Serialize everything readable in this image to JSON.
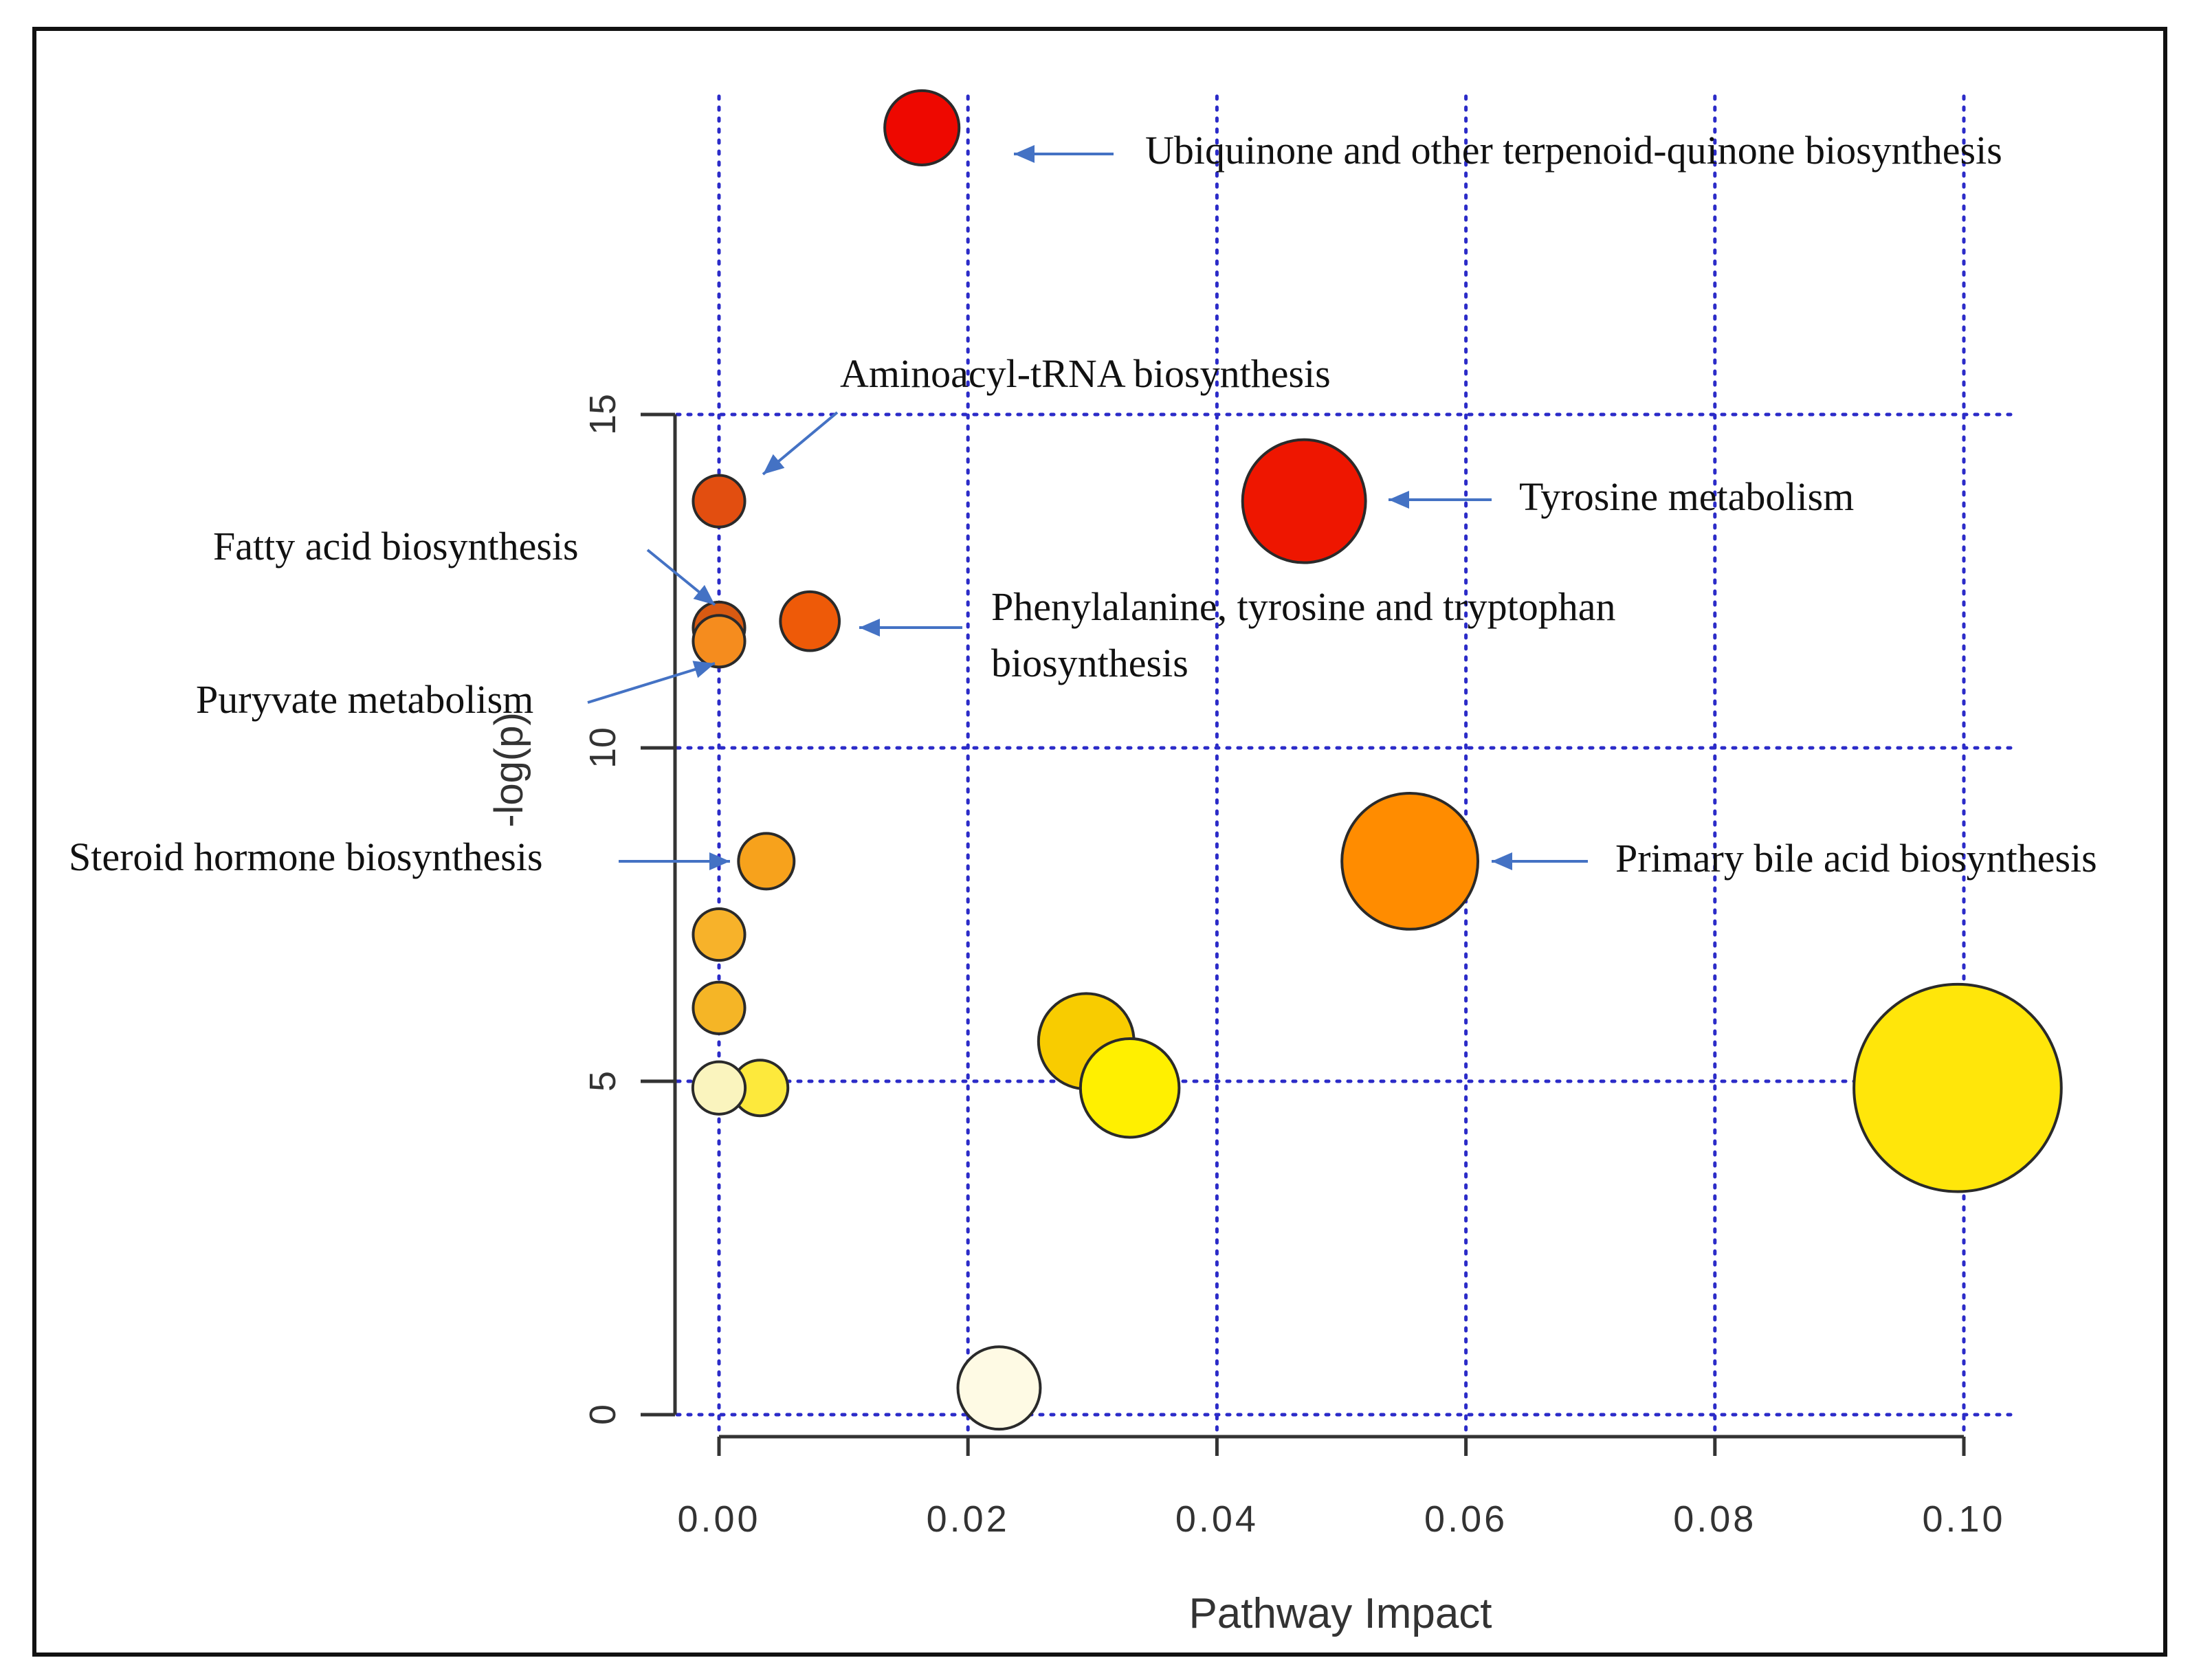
{
  "chart_data": {
    "type": "scatter",
    "title": "",
    "xlabel": "Pathway Impact",
    "ylabel": "-log(p)",
    "xlim": [
      -0.002,
      0.103
    ],
    "ylim": [
      -0.6,
      20.5
    ],
    "x_ticks": [
      0.0,
      0.02,
      0.04,
      0.06,
      0.08,
      0.1
    ],
    "x_tick_labels": [
      "0.00",
      "0.02",
      "0.04",
      "0.06",
      "0.08",
      "0.10"
    ],
    "y_ticks": [
      0,
      5,
      10,
      15
    ],
    "y_tick_labels": [
      "0",
      "5",
      "10",
      "15"
    ],
    "grid": true,
    "points": [
      {
        "x": 0.0225,
        "y": 0.4,
        "impact_size": 0.022,
        "color": "#FEFAE4"
      },
      {
        "x": 0.0995,
        "y": 4.9,
        "impact_size": 0.099,
        "color": "#FFE60A"
      },
      {
        "x": 0.0555,
        "y": 8.3,
        "impact_size": 0.055,
        "color": "#FF8C00",
        "label": "Primary  bile  acid  biosynthesis"
      },
      {
        "x": 0.047,
        "y": 13.7,
        "impact_size": 0.047,
        "color": "#EE1600",
        "label": "Tyrosine  metabolism"
      },
      {
        "x": 0.0295,
        "y": 5.6,
        "impact_size": 0.03,
        "color": "#F8CC00"
      },
      {
        "x": 0.033,
        "y": 4.9,
        "impact_size": 0.032,
        "color": "#FFF000"
      },
      {
        "x": 0.0163,
        "y": 19.3,
        "impact_size": 0.017,
        "color": "#EE0800",
        "label": "Ubiquinone  and  other  terpenoid-quinone  biosynthesis"
      },
      {
        "x": 0.0073,
        "y": 11.9,
        "impact_size": 0.0075,
        "color": "#EE5A08",
        "label": "Phenylalanine,  tyrosine  and tryptophan  biosynthesis"
      },
      {
        "x": 0.0038,
        "y": 8.3,
        "impact_size": 0.0055,
        "color": "#F7A21C",
        "label": "Steroid  hormone  biosynthesis"
      },
      {
        "x": 0.0033,
        "y": 4.9,
        "impact_size": 0.0055,
        "color": "#FDE93C"
      },
      {
        "x": 0.0,
        "y": 13.7,
        "impact_size": 0.003,
        "color": "#E24E10",
        "label": "Aminoacyl-tRNA  biosynthesis"
      },
      {
        "x": 0.0,
        "y": 11.8,
        "impact_size": 0.003,
        "color": "#D85A12",
        "label": "Fatty  acid  biosynthesis"
      },
      {
        "x": 0.0,
        "y": 11.6,
        "impact_size": 0.003,
        "color": "#F58C1E",
        "label": "Puryvate  metabolism"
      },
      {
        "x": 0.0,
        "y": 7.2,
        "impact_size": 0.003,
        "color": "#F7B22A"
      },
      {
        "x": 0.0,
        "y": 6.1,
        "impact_size": 0.003,
        "color": "#F5B526"
      },
      {
        "x": 0.0,
        "y": 4.9,
        "impact_size": 0.0035,
        "color": "#FAF4BE"
      }
    ],
    "annotations": [
      {
        "text": "Ubiquinone  and  other  terpenoid-quinone  biosynthesis",
        "lines": [
          "Ubiquinone  and  other  terpenoid-quinone  biosynthesis"
        ]
      },
      {
        "text": "Aminoacyl-tRNA  biosynthesis",
        "lines": [
          "Aminoacyl-tRNA  biosynthesis"
        ]
      },
      {
        "text": "Tyrosine  metabolism",
        "lines": [
          "Tyrosine  metabolism"
        ]
      },
      {
        "text": "Fatty  acid  biosynthesis",
        "lines": [
          "Fatty  acid  biosynthesis"
        ]
      },
      {
        "text": "Phenylalanine,  tyrosine  and tryptophan biosynthesis",
        "lines": [
          "Phenylalanine,  tyrosine  and tryptophan",
          "biosynthesis"
        ]
      },
      {
        "text": "Puryvate  metabolism",
        "lines": [
          "Puryvate  metabolism"
        ]
      },
      {
        "text": "Steroid  hormone  biosynthesis",
        "lines": [
          "Steroid  hormone  biosynthesis"
        ]
      },
      {
        "text": "Primary  bile  acid  biosynthesis",
        "lines": [
          "Primary  bile  acid  biosynthesis"
        ]
      }
    ],
    "colors": {
      "grid": "#2B2BC8",
      "axis": "#333333",
      "arrow": "#4472C4",
      "frame": "#111111"
    }
  }
}
